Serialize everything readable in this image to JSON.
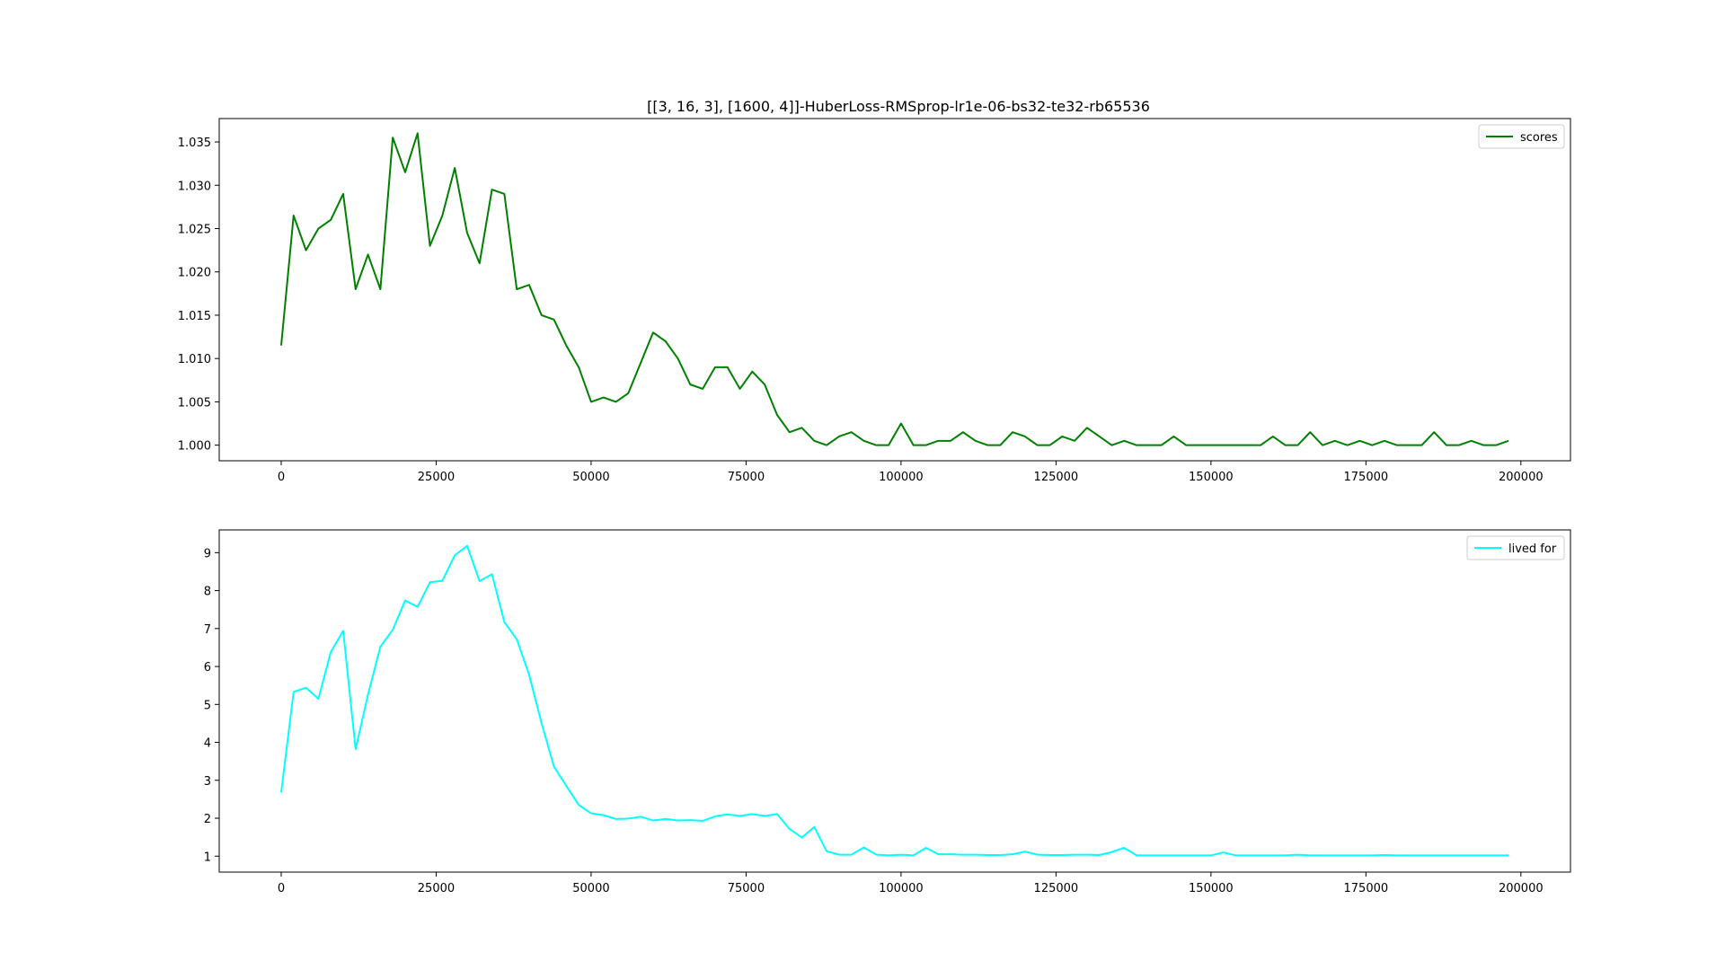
{
  "figure": {
    "title": "[[3, 16, 3], [1600, 4]]-HuberLoss-RMSprop-lr1e-06-bs32-te32-rb65536"
  },
  "chart_data": [
    {
      "type": "line",
      "title": "[[3, 16, 3], [1600, 4]]-HuberLoss-RMSprop-lr1e-06-bs32-te32-rb65536",
      "xlabel": "",
      "ylabel": "",
      "xlim": [
        -10000,
        208000
      ],
      "ylim": [
        0.9982,
        1.0377
      ],
      "xticks": [
        0,
        25000,
        50000,
        75000,
        100000,
        125000,
        150000,
        175000,
        200000
      ],
      "xtick_labels": [
        "0",
        "25000",
        "50000",
        "75000",
        "100000",
        "125000",
        "150000",
        "175000",
        "200000"
      ],
      "yticks": [
        1.0,
        1.005,
        1.01,
        1.015,
        1.02,
        1.025,
        1.03,
        1.035
      ],
      "ytick_labels": [
        "1.000",
        "1.005",
        "1.010",
        "1.015",
        "1.020",
        "1.025",
        "1.030",
        "1.035"
      ],
      "grid": false,
      "legend": "top-right",
      "x": [
        0,
        2000,
        4000,
        6000,
        8000,
        10000,
        12000,
        14000,
        16000,
        18000,
        20000,
        22000,
        24000,
        26000,
        28000,
        30000,
        32000,
        34000,
        36000,
        38000,
        40000,
        42000,
        44000,
        46000,
        48000,
        50000,
        52000,
        54000,
        56000,
        58000,
        60000,
        62000,
        64000,
        66000,
        68000,
        70000,
        72000,
        74000,
        76000,
        78000,
        80000,
        82000,
        84000,
        86000,
        88000,
        90000,
        92000,
        94000,
        96000,
        98000,
        100000,
        102000,
        104000,
        106000,
        108000,
        110000,
        112000,
        114000,
        116000,
        118000,
        120000,
        122000,
        124000,
        126000,
        128000,
        130000,
        132000,
        134000,
        136000,
        138000,
        140000,
        142000,
        144000,
        146000,
        148000,
        150000,
        152000,
        154000,
        156000,
        158000,
        160000,
        162000,
        164000,
        166000,
        168000,
        170000,
        172000,
        174000,
        176000,
        178000,
        180000,
        182000,
        184000,
        186000,
        188000,
        190000,
        192000,
        194000,
        196000,
        198000
      ],
      "series": [
        {
          "name": "scores",
          "color": "#008000",
          "values": [
            1.0115,
            1.0265,
            1.0225,
            1.025,
            1.026,
            1.029,
            1.018,
            1.022,
            1.018,
            1.0355,
            1.0315,
            1.036,
            1.023,
            1.0265,
            1.032,
            1.0245,
            1.021,
            1.0295,
            1.029,
            1.018,
            1.0185,
            1.015,
            1.0145,
            1.0115,
            1.009,
            1.005,
            1.0055,
            1.005,
            1.006,
            1.0095,
            1.013,
            1.012,
            1.01,
            1.007,
            1.0065,
            1.009,
            1.009,
            1.0065,
            1.0085,
            1.007,
            1.0035,
            1.0015,
            1.002,
            1.0005,
            1.0,
            1.001,
            1.0015,
            1.0005,
            1.0,
            1.0,
            1.0025,
            1.0,
            1.0,
            1.0005,
            1.0005,
            1.0015,
            1.0005,
            1.0,
            1.0,
            1.0015,
            1.001,
            1.0,
            1.0,
            1.001,
            1.0005,
            1.002,
            1.001,
            1.0,
            1.0005,
            1.0,
            1.0,
            1.0,
            1.001,
            1.0,
            1.0,
            1.0,
            1.0,
            1.0,
            1.0,
            1.0,
            1.001,
            1.0,
            1.0,
            1.0015,
            1.0,
            1.0005,
            1.0,
            1.0005,
            1.0,
            1.0005,
            1.0,
            1.0,
            1.0,
            1.0015,
            1.0,
            1.0,
            1.0005,
            1.0,
            1.0,
            1.0005
          ]
        }
      ]
    },
    {
      "type": "line",
      "title": "",
      "xlabel": "",
      "ylabel": "",
      "xlim": [
        -10000,
        208000
      ],
      "ylim": [
        0.58,
        9.6
      ],
      "xticks": [
        0,
        25000,
        50000,
        75000,
        100000,
        125000,
        150000,
        175000,
        200000
      ],
      "xtick_labels": [
        "0",
        "25000",
        "50000",
        "75000",
        "100000",
        "125000",
        "150000",
        "175000",
        "200000"
      ],
      "yticks": [
        1,
        2,
        3,
        4,
        5,
        6,
        7,
        8,
        9
      ],
      "ytick_labels": [
        "1",
        "2",
        "3",
        "4",
        "5",
        "6",
        "7",
        "8",
        "9"
      ],
      "grid": false,
      "legend": "top-right",
      "x": [
        0,
        2000,
        4000,
        6000,
        8000,
        10000,
        12000,
        14000,
        16000,
        18000,
        20000,
        22000,
        24000,
        26000,
        28000,
        30000,
        32000,
        34000,
        36000,
        38000,
        40000,
        42000,
        44000,
        46000,
        48000,
        50000,
        52000,
        54000,
        56000,
        58000,
        60000,
        62000,
        64000,
        66000,
        68000,
        70000,
        72000,
        74000,
        76000,
        78000,
        80000,
        82000,
        84000,
        86000,
        88000,
        90000,
        92000,
        94000,
        96000,
        98000,
        100000,
        102000,
        104000,
        106000,
        108000,
        110000,
        112000,
        114000,
        116000,
        118000,
        120000,
        122000,
        124000,
        126000,
        128000,
        130000,
        132000,
        134000,
        136000,
        138000,
        140000,
        142000,
        144000,
        146000,
        148000,
        150000,
        152000,
        154000,
        156000,
        158000,
        160000,
        162000,
        164000,
        166000,
        168000,
        170000,
        172000,
        174000,
        176000,
        178000,
        180000,
        182000,
        184000,
        186000,
        188000,
        190000,
        192000,
        194000,
        196000,
        198000
      ],
      "series": [
        {
          "name": "lived for",
          "color": "#00ffff",
          "values": [
            2.68,
            5.33,
            5.44,
            5.15,
            6.38,
            6.94,
            3.82,
            5.26,
            6.52,
            6.97,
            7.74,
            7.57,
            8.22,
            8.26,
            8.93,
            9.18,
            8.25,
            8.43,
            7.17,
            6.72,
            5.78,
            4.51,
            3.36,
            2.85,
            2.35,
            2.13,
            2.08,
            1.98,
            1.99,
            2.04,
            1.94,
            1.98,
            1.94,
            1.95,
            1.93,
            2.05,
            2.1,
            2.06,
            2.11,
            2.06,
            2.11,
            1.72,
            1.49,
            1.77,
            1.13,
            1.04,
            1.04,
            1.23,
            1.04,
            1.02,
            1.04,
            1.02,
            1.22,
            1.05,
            1.05,
            1.04,
            1.04,
            1.03,
            1.03,
            1.05,
            1.12,
            1.04,
            1.03,
            1.03,
            1.04,
            1.04,
            1.03,
            1.11,
            1.22,
            1.02,
            1.02,
            1.02,
            1.02,
            1.02,
            1.02,
            1.02,
            1.1,
            1.02,
            1.02,
            1.02,
            1.02,
            1.02,
            1.04,
            1.02,
            1.02,
            1.02,
            1.02,
            1.02,
            1.02,
            1.03,
            1.02,
            1.02,
            1.02,
            1.02,
            1.02,
            1.02,
            1.02,
            1.02,
            1.02,
            1.02
          ]
        }
      ]
    }
  ]
}
